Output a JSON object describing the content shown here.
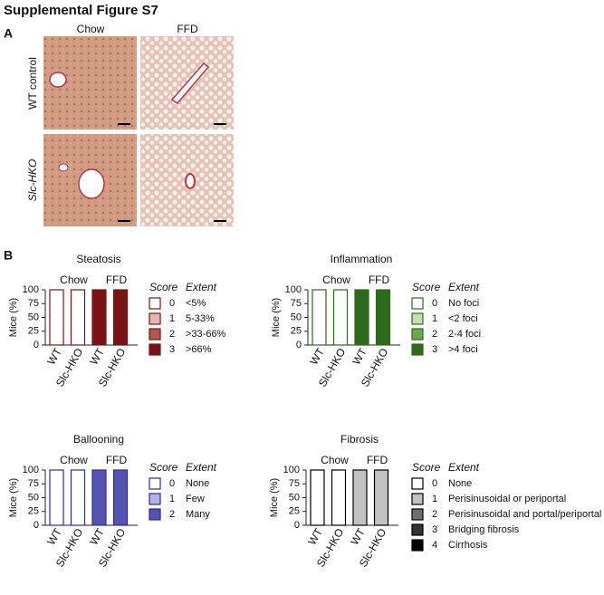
{
  "figure_title": "Supplemental Figure S7",
  "panel_a": {
    "label": "A",
    "columns": [
      "Chow",
      "FFD"
    ],
    "rows": [
      "WT control",
      "Slc-HKO"
    ]
  },
  "panel_b": {
    "label": "B"
  },
  "chart_data": [
    {
      "type": "bar",
      "stacked": true,
      "title": "Steatosis",
      "ylabel": "Mice (%)",
      "categories": [
        "WT",
        "Slc-HKO",
        "WT",
        "Slc-HKO"
      ],
      "groups": [
        "Chow",
        "FFD"
      ],
      "ylim": [
        0,
        100
      ],
      "yticks": [
        0,
        25,
        50,
        75,
        100
      ],
      "edge_color": "#7a1414",
      "legend_headers": [
        "Score",
        "Extent"
      ],
      "series": [
        {
          "name": "0",
          "extent": "<5%",
          "color": "#ffffff",
          "values": [
            100,
            100,
            0,
            0
          ]
        },
        {
          "name": "1",
          "extent": "5-33%",
          "color": "#e6b7b0",
          "values": [
            0,
            0,
            0,
            0
          ]
        },
        {
          "name": "2",
          "extent": ">33-66%",
          "color": "#b0584c",
          "values": [
            0,
            0,
            0,
            0
          ]
        },
        {
          "name": "3",
          "extent": ">66%",
          "color": "#7a1414",
          "values": [
            0,
            0,
            100,
            100
          ]
        }
      ]
    },
    {
      "type": "bar",
      "stacked": true,
      "title": "Inflammation",
      "ylabel": "Mice (%)",
      "categories": [
        "WT",
        "Slc-HKO",
        "WT",
        "Slc-HKO"
      ],
      "groups": [
        "Chow",
        "FFD"
      ],
      "ylim": [
        0,
        100
      ],
      "yticks": [
        0,
        25,
        50,
        75,
        100
      ],
      "edge_color": "#2d6a1c",
      "legend_headers": [
        "Score",
        "Extent"
      ],
      "series": [
        {
          "name": "0",
          "extent": "No foci",
          "color": "#ffffff",
          "values": [
            100,
            100,
            0,
            0
          ]
        },
        {
          "name": "1",
          "extent": "<2 foci",
          "color": "#c4dfb4",
          "values": [
            0,
            0,
            0,
            0
          ]
        },
        {
          "name": "2",
          "extent": "2-4 foci",
          "color": "#6aa94f",
          "values": [
            0,
            0,
            0,
            0
          ]
        },
        {
          "name": "3",
          "extent": ">4 foci",
          "color": "#2d6a1c",
          "values": [
            0,
            0,
            100,
            100
          ]
        }
      ]
    },
    {
      "type": "bar",
      "stacked": true,
      "title": "Ballooning",
      "ylabel": "Mice (%)",
      "categories": [
        "WT",
        "Slc-HKO",
        "WT",
        "Slc-HKO"
      ],
      "groups": [
        "Chow",
        "FFD"
      ],
      "ylim": [
        0,
        100
      ],
      "yticks": [
        0,
        25,
        50,
        75,
        100
      ],
      "edge_color": "#2b2b9c",
      "legend_headers": [
        "Score",
        "Extent"
      ],
      "series": [
        {
          "name": "0",
          "extent": "None",
          "color": "#ffffff",
          "values": [
            100,
            100,
            0,
            0
          ]
        },
        {
          "name": "1",
          "extent": "Few",
          "color": "#b3b2e2",
          "values": [
            0,
            0,
            0,
            0
          ]
        },
        {
          "name": "2",
          "extent": "Many",
          "color": "#5553b2",
          "values": [
            0,
            0,
            100,
            100
          ]
        }
      ]
    },
    {
      "type": "bar",
      "stacked": true,
      "title": "Fibrosis",
      "ylabel": "Mice (%)",
      "categories": [
        "WT",
        "Slc-HKO",
        "WT",
        "Slc-HKO"
      ],
      "groups": [
        "Chow",
        "FFD"
      ],
      "ylim": [
        0,
        100
      ],
      "yticks": [
        0,
        25,
        50,
        75,
        100
      ],
      "edge_color": "#000000",
      "legend_headers": [
        "Score",
        "Extent"
      ],
      "series": [
        {
          "name": "0",
          "extent": "None",
          "color": "#ffffff",
          "values": [
            100,
            100,
            0,
            0
          ]
        },
        {
          "name": "1",
          "extent": "Perisinusoidal or periportal",
          "color": "#c2c2c2",
          "values": [
            0,
            0,
            100,
            100
          ]
        },
        {
          "name": "2",
          "extent": "Perisinusoidal and portal/periportal",
          "color": "#6e6e6e",
          "values": [
            0,
            0,
            0,
            0
          ]
        },
        {
          "name": "3",
          "extent": "Bridging fibrosis",
          "color": "#333333",
          "values": [
            0,
            0,
            0,
            0
          ]
        },
        {
          "name": "4",
          "extent": "Cirrhosis",
          "color": "#000000",
          "values": [
            0,
            0,
            0,
            0
          ]
        }
      ]
    }
  ]
}
